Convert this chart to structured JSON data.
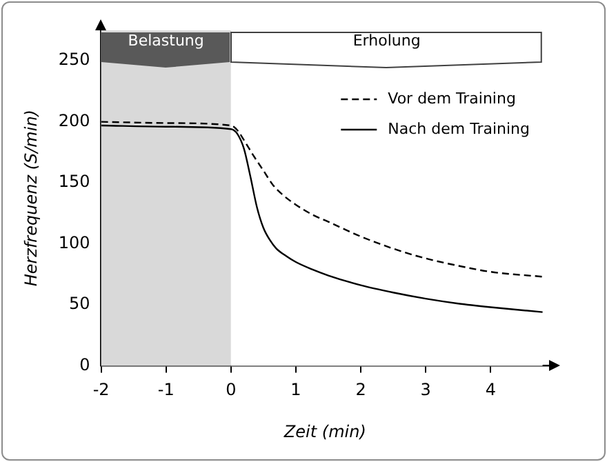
{
  "chart_data": {
    "type": "line",
    "xlabel": "Zeit (min)",
    "ylabel": "Herzfrequenz (S/min)",
    "xlim": [
      -2,
      4.9
    ],
    "xticks": [
      -2,
      -1,
      0,
      1,
      2,
      3,
      4
    ],
    "ylim": [
      0,
      275
    ],
    "yticks": [
      0,
      50,
      100,
      150,
      200,
      250
    ],
    "grid": false,
    "legend": "top right",
    "marker": "none",
    "bands": [
      {
        "axis": "x",
        "from": -2,
        "to": 0,
        "label": "Belastung",
        "color": "#d9d9d9"
      },
      {
        "axis": "x",
        "from": 0,
        "to": 4.8,
        "label": "Erholung",
        "color": "#ffffff"
      }
    ],
    "series": [
      {
        "name": "Vor dem Training",
        "color": "#000000",
        "line_style": "dashed",
        "x": [
          -2,
          -1,
          0,
          0.1,
          0.2,
          0.35,
          0.5,
          0.65,
          0.8,
          1,
          1.25,
          1.5,
          2,
          2.5,
          3,
          3.5,
          4,
          4.8
        ],
        "values": [
          200,
          199,
          197,
          193,
          185,
          172,
          160,
          148,
          140,
          132,
          124,
          118,
          106,
          96,
          88,
          82,
          77,
          73
        ]
      },
      {
        "name": "Nach dem Training",
        "color": "#000000",
        "line_style": "solid",
        "x": [
          -2,
          -1,
          0,
          0.1,
          0.2,
          0.3,
          0.4,
          0.5,
          0.6,
          0.7,
          0.85,
          1,
          1.25,
          1.5,
          2,
          2.5,
          3,
          3.5,
          4,
          4.8
        ],
        "values": [
          197,
          196,
          194,
          190,
          178,
          155,
          130,
          113,
          103,
          96,
          90,
          85,
          79,
          74,
          66,
          60,
          55,
          51,
          48,
          44
        ]
      }
    ]
  }
}
